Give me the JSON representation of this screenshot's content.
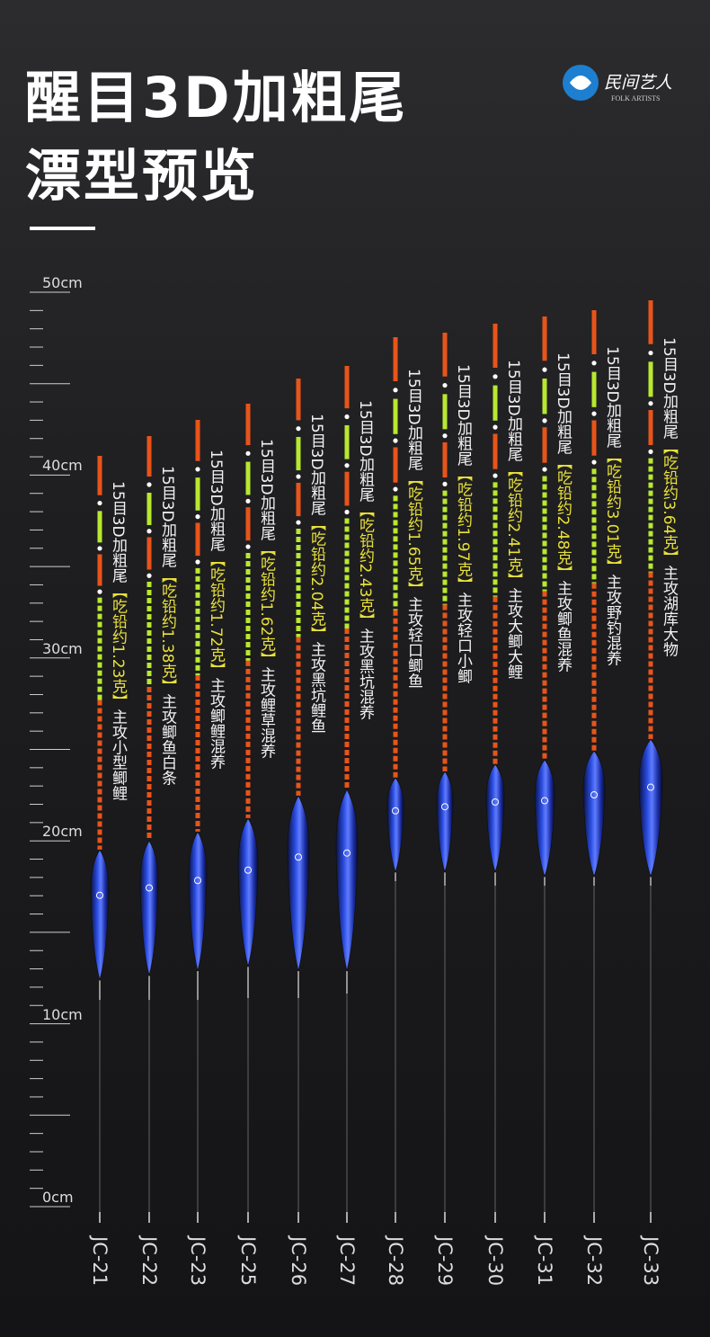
{
  "header": {
    "title_line1": "醒目3D加粗尾",
    "title_line2": "漂型预览"
  },
  "logo": {
    "name": "民间艺人",
    "english": "FOLK ARTISTS"
  },
  "ruler": {
    "labels": [
      "50cm",
      "40cm",
      "30cm",
      "20cm",
      "10cm",
      "0cm"
    ]
  },
  "floats": [
    {
      "model": "JC-21",
      "spec": "15目3D加粗尾",
      "lead": "【吃铅约1.23克】",
      "use": "主攻小型鲫鲤"
    },
    {
      "model": "JC-22",
      "spec": "15目3D加粗尾",
      "lead": "【吃铅约1.38克】",
      "use": "主攻鲫鱼白条"
    },
    {
      "model": "JC-23",
      "spec": "15目3D加粗尾",
      "lead": "【吃铅约1.72克】",
      "use": "主攻鲫鲤混养"
    },
    {
      "model": "JC-25",
      "spec": "15目3D加粗尾",
      "lead": "【吃铅约1.62克】",
      "use": "主攻鲤草混养"
    },
    {
      "model": "JC-26",
      "spec": "15目3D加粗尾",
      "lead": "【吃铅约2.04克】",
      "use": "主攻黑坑鲤鱼"
    },
    {
      "model": "JC-27",
      "spec": "15目3D加粗尾",
      "lead": "【吃铅约2.43克】",
      "use": "主攻黑坑混养"
    },
    {
      "model": "JC-28",
      "spec": "15目3D加粗尾",
      "lead": "【吃铅约1.65克】",
      "use": "主攻轻口鲫鱼"
    },
    {
      "model": "JC-29",
      "spec": "15目3D加粗尾",
      "lead": "【吃铅约1.97克】",
      "use": "主攻轻口小鲫"
    },
    {
      "model": "JC-30",
      "spec": "15目3D加粗尾",
      "lead": "【吃铅约2.41克】",
      "use": "主攻大鲫大鲤"
    },
    {
      "model": "JC-31",
      "spec": "15目3D加粗尾",
      "lead": "【吃铅约2.48克】",
      "use": "主攻鲫鱼混养"
    },
    {
      "model": "JC-32",
      "spec": "15目3D加粗尾",
      "lead": "【吃铅约3.01克】",
      "use": "主攻野钓混养"
    },
    {
      "model": "JC-33",
      "spec": "15目3D加粗尾",
      "lead": "【吃铅约3.64克】",
      "use": "主攻湖库大物"
    }
  ]
}
